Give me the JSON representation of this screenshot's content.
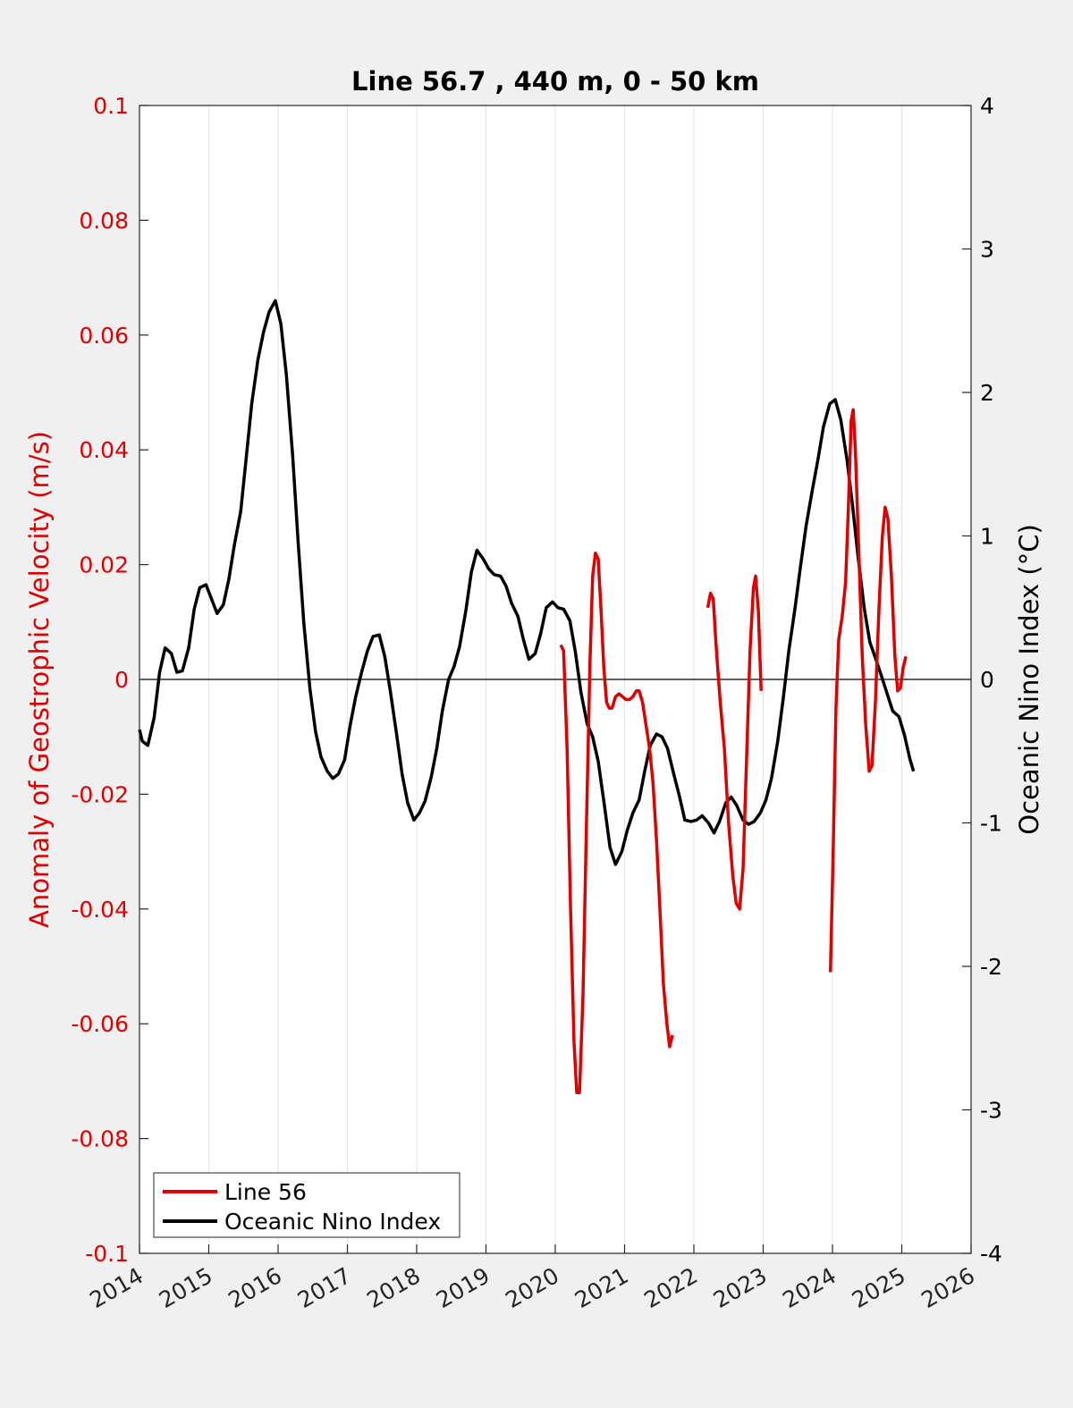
{
  "chart_data": {
    "type": "line",
    "title": "Line 56.7 , 440 m, 0 - 50 km",
    "xlim": [
      2014,
      2026
    ],
    "x_ticks": [
      "2014",
      "2015",
      "2016",
      "2017",
      "2018",
      "2019",
      "2020",
      "2021",
      "2022",
      "2023",
      "2024",
      "2025",
      "2026"
    ],
    "left_axis": {
      "label": "Anomaly of Geostrophic Velocity (m/s)",
      "ylim": [
        -0.1,
        0.1
      ],
      "color": "#e00000",
      "ticks": [
        "0.1",
        "0.08",
        "0.06",
        "0.04",
        "0.02",
        "0",
        "-0.02",
        "-0.04",
        "-0.06",
        "-0.08",
        "-0.1"
      ]
    },
    "right_axis": {
      "label": "Oceanic Nino Index (°C)",
      "ylim": [
        -4,
        4
      ],
      "color": "#000000",
      "ticks": [
        "4",
        "3",
        "2",
        "1",
        "0",
        "-1",
        "-2",
        "-3",
        "-4"
      ]
    },
    "grid": "vertical",
    "zero_line": true,
    "legend": {
      "position": "bottom-left",
      "entries": [
        {
          "name": "Line 56",
          "color": "#e00000"
        },
        {
          "name": "Oceanic Nino Index",
          "color": "#000000"
        }
      ]
    },
    "series": [
      {
        "name": "Line 56",
        "axis": "left",
        "color": "#e00000",
        "segments": [
          [
            [
              2020.08,
              0.006
            ],
            [
              2020.12,
              0.005
            ],
            [
              2020.17,
              -0.012
            ],
            [
              2020.22,
              -0.04
            ],
            [
              2020.27,
              -0.063
            ],
            [
              2020.31,
              -0.072
            ],
            [
              2020.35,
              -0.072
            ],
            [
              2020.4,
              -0.055
            ],
            [
              2020.45,
              -0.025
            ],
            [
              2020.5,
              0.003
            ],
            [
              2020.54,
              0.018
            ],
            [
              2020.58,
              0.022
            ],
            [
              2020.62,
              0.021
            ],
            [
              2020.66,
              0.012
            ],
            [
              2020.7,
              0.002
            ],
            [
              2020.74,
              -0.004
            ],
            [
              2020.78,
              -0.005
            ],
            [
              2020.82,
              -0.005
            ],
            [
              2020.87,
              -0.003
            ],
            [
              2020.92,
              -0.0025
            ],
            [
              2020.97,
              -0.003
            ],
            [
              2021.02,
              -0.0035
            ],
            [
              2021.07,
              -0.0035
            ],
            [
              2021.12,
              -0.003
            ],
            [
              2021.17,
              -0.002
            ],
            [
              2021.21,
              -0.002
            ],
            [
              2021.26,
              -0.004
            ],
            [
              2021.31,
              -0.008
            ],
            [
              2021.36,
              -0.012
            ],
            [
              2021.41,
              -0.018
            ],
            [
              2021.46,
              -0.028
            ],
            [
              2021.51,
              -0.04
            ],
            [
              2021.56,
              -0.053
            ],
            [
              2021.61,
              -0.06
            ],
            [
              2021.65,
              -0.064
            ],
            [
              2021.69,
              -0.062
            ]
          ],
          [
            [
              2022.2,
              0.0125
            ],
            [
              2022.24,
              0.015
            ],
            [
              2022.28,
              0.014
            ],
            [
              2022.32,
              0.006
            ],
            [
              2022.38,
              -0.004
            ],
            [
              2022.44,
              -0.012
            ],
            [
              2022.5,
              -0.025
            ],
            [
              2022.56,
              -0.034
            ],
            [
              2022.61,
              -0.039
            ],
            [
              2022.66,
              -0.04
            ],
            [
              2022.71,
              -0.033
            ],
            [
              2022.76,
              -0.014
            ],
            [
              2022.81,
              0.005
            ],
            [
              2022.86,
              0.016
            ],
            [
              2022.89,
              0.018
            ],
            [
              2022.93,
              0.012
            ],
            [
              2022.97,
              -0.002
            ]
          ],
          [
            [
              2023.97,
              -0.051
            ],
            [
              2024.01,
              -0.03
            ],
            [
              2024.05,
              -0.005
            ],
            [
              2024.09,
              0.007
            ],
            [
              2024.14,
              0.011
            ],
            [
              2024.19,
              0.017
            ],
            [
              2024.23,
              0.03
            ],
            [
              2024.27,
              0.045
            ],
            [
              2024.3,
              0.047
            ],
            [
              2024.33,
              0.04
            ],
            [
              2024.38,
              0.022
            ],
            [
              2024.43,
              0.004
            ],
            [
              2024.48,
              -0.008
            ],
            [
              2024.53,
              -0.016
            ],
            [
              2024.57,
              -0.015
            ],
            [
              2024.62,
              -0.004
            ],
            [
              2024.67,
              0.012
            ],
            [
              2024.72,
              0.025
            ],
            [
              2024.76,
              0.03
            ],
            [
              2024.8,
              0.028
            ],
            [
              2024.85,
              0.018
            ],
            [
              2024.9,
              0.004
            ],
            [
              2024.94,
              -0.002
            ],
            [
              2024.98,
              -0.0015
            ],
            [
              2025.02,
              0.002
            ],
            [
              2025.06,
              0.004
            ]
          ]
        ]
      },
      {
        "name": "Oceanic Nino Index",
        "axis": "right",
        "color": "#000000",
        "points": [
          [
            2014.0,
            -0.35
          ],
          [
            2014.04,
            -0.43
          ],
          [
            2014.12,
            -0.46
          ],
          [
            2014.21,
            -0.27
          ],
          [
            2014.29,
            0.05
          ],
          [
            2014.37,
            0.22
          ],
          [
            2014.46,
            0.18
          ],
          [
            2014.54,
            0.05
          ],
          [
            2014.62,
            0.06
          ],
          [
            2014.71,
            0.22
          ],
          [
            2014.79,
            0.49
          ],
          [
            2014.87,
            0.64
          ],
          [
            2014.96,
            0.66
          ],
          [
            2015.04,
            0.56
          ],
          [
            2015.12,
            0.46
          ],
          [
            2015.21,
            0.52
          ],
          [
            2015.29,
            0.7
          ],
          [
            2015.37,
            0.94
          ],
          [
            2015.46,
            1.17
          ],
          [
            2015.54,
            1.54
          ],
          [
            2015.62,
            1.92
          ],
          [
            2015.71,
            2.23
          ],
          [
            2015.79,
            2.42
          ],
          [
            2015.87,
            2.56
          ],
          [
            2015.96,
            2.64
          ],
          [
            2016.04,
            2.48
          ],
          [
            2016.12,
            2.12
          ],
          [
            2016.21,
            1.56
          ],
          [
            2016.29,
            0.95
          ],
          [
            2016.37,
            0.4
          ],
          [
            2016.46,
            -0.07
          ],
          [
            2016.54,
            -0.36
          ],
          [
            2016.62,
            -0.54
          ],
          [
            2016.71,
            -0.64
          ],
          [
            2016.79,
            -0.69
          ],
          [
            2016.87,
            -0.66
          ],
          [
            2016.96,
            -0.56
          ],
          [
            2017.04,
            -0.32
          ],
          [
            2017.12,
            -0.12
          ],
          [
            2017.21,
            0.06
          ],
          [
            2017.29,
            0.2
          ],
          [
            2017.37,
            0.3
          ],
          [
            2017.46,
            0.31
          ],
          [
            2017.54,
            0.16
          ],
          [
            2017.62,
            -0.08
          ],
          [
            2017.71,
            -0.38
          ],
          [
            2017.79,
            -0.66
          ],
          [
            2017.87,
            -0.86
          ],
          [
            2017.96,
            -0.98
          ],
          [
            2018.04,
            -0.93
          ],
          [
            2018.12,
            -0.85
          ],
          [
            2018.21,
            -0.68
          ],
          [
            2018.29,
            -0.48
          ],
          [
            2018.37,
            -0.22
          ],
          [
            2018.46,
            0.0
          ],
          [
            2018.54,
            0.09
          ],
          [
            2018.62,
            0.23
          ],
          [
            2018.71,
            0.48
          ],
          [
            2018.79,
            0.75
          ],
          [
            2018.87,
            0.9
          ],
          [
            2018.96,
            0.84
          ],
          [
            2019.04,
            0.77
          ],
          [
            2019.12,
            0.73
          ],
          [
            2019.21,
            0.72
          ],
          [
            2019.29,
            0.65
          ],
          [
            2019.37,
            0.53
          ],
          [
            2019.46,
            0.44
          ],
          [
            2019.54,
            0.28
          ],
          [
            2019.62,
            0.14
          ],
          [
            2019.71,
            0.18
          ],
          [
            2019.79,
            0.32
          ],
          [
            2019.87,
            0.5
          ],
          [
            2019.96,
            0.54
          ],
          [
            2020.04,
            0.5
          ],
          [
            2020.12,
            0.49
          ],
          [
            2020.21,
            0.41
          ],
          [
            2020.29,
            0.19
          ],
          [
            2020.37,
            -0.09
          ],
          [
            2020.46,
            -0.31
          ],
          [
            2020.54,
            -0.4
          ],
          [
            2020.62,
            -0.57
          ],
          [
            2020.71,
            -0.88
          ],
          [
            2020.79,
            -1.17
          ],
          [
            2020.87,
            -1.29
          ],
          [
            2020.96,
            -1.2
          ],
          [
            2021.04,
            -1.05
          ],
          [
            2021.12,
            -0.93
          ],
          [
            2021.21,
            -0.84
          ],
          [
            2021.29,
            -0.64
          ],
          [
            2021.37,
            -0.46
          ],
          [
            2021.46,
            -0.38
          ],
          [
            2021.54,
            -0.4
          ],
          [
            2021.62,
            -0.48
          ],
          [
            2021.71,
            -0.66
          ],
          [
            2021.79,
            -0.81
          ],
          [
            2021.87,
            -0.98
          ],
          [
            2021.96,
            -0.99
          ],
          [
            2022.04,
            -0.98
          ],
          [
            2022.12,
            -0.95
          ],
          [
            2022.21,
            -1.0
          ],
          [
            2022.29,
            -1.07
          ],
          [
            2022.37,
            -0.99
          ],
          [
            2022.46,
            -0.86
          ],
          [
            2022.54,
            -0.82
          ],
          [
            2022.62,
            -0.88
          ],
          [
            2022.71,
            -0.98
          ],
          [
            2022.79,
            -1.01
          ],
          [
            2022.87,
            -0.99
          ],
          [
            2022.96,
            -0.93
          ],
          [
            2023.04,
            -0.84
          ],
          [
            2023.12,
            -0.69
          ],
          [
            2023.21,
            -0.43
          ],
          [
            2023.29,
            -0.13
          ],
          [
            2023.37,
            0.2
          ],
          [
            2023.46,
            0.5
          ],
          [
            2023.54,
            0.79
          ],
          [
            2023.62,
            1.07
          ],
          [
            2023.71,
            1.32
          ],
          [
            2023.79,
            1.53
          ],
          [
            2023.87,
            1.76
          ],
          [
            2023.96,
            1.92
          ],
          [
            2024.04,
            1.95
          ],
          [
            2024.12,
            1.81
          ],
          [
            2024.21,
            1.53
          ],
          [
            2024.29,
            1.21
          ],
          [
            2024.37,
            0.85
          ],
          [
            2024.46,
            0.49
          ],
          [
            2024.54,
            0.26
          ],
          [
            2024.62,
            0.15
          ],
          [
            2024.71,
            0.02
          ],
          [
            2024.79,
            -0.1
          ],
          [
            2024.87,
            -0.22
          ],
          [
            2024.96,
            -0.26
          ],
          [
            2025.04,
            -0.39
          ],
          [
            2025.12,
            -0.56
          ],
          [
            2025.17,
            -0.64
          ]
        ]
      }
    ]
  }
}
